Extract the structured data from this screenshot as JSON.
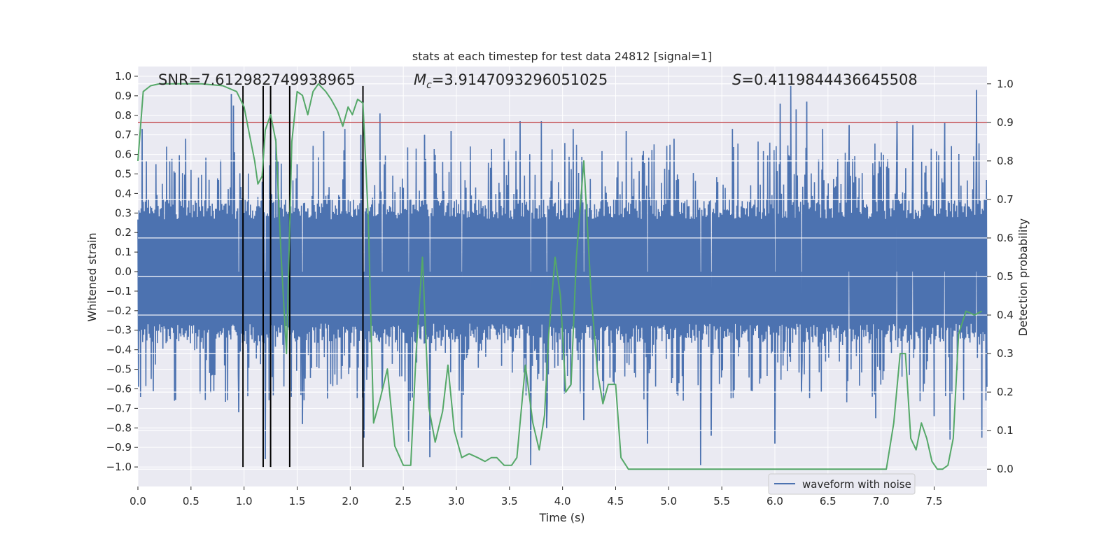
{
  "chart_data": {
    "type": "line",
    "title": "stats at each timestep for test data 24812 [signal=1]",
    "xlabel": "Time (s)",
    "ylabel": "Whitened strain",
    "y2label": "Detection probability",
    "xlim": [
      0.0,
      7.998
    ],
    "ylim": [
      -1.1,
      1.05
    ],
    "y2lim": [
      -0.045,
      1.045
    ],
    "x_ticks": [
      0.0,
      0.5,
      1.0,
      1.5,
      2.0,
      2.5,
      3.0,
      3.5,
      4.0,
      4.5,
      5.0,
      5.5,
      6.0,
      6.5,
      7.0,
      7.5
    ],
    "x_tick_labels": [
      "0.0",
      "0.5",
      "1.0",
      "1.5",
      "2.0",
      "2.5",
      "3.0",
      "3.5",
      "4.0",
      "4.5",
      "5.0",
      "5.5",
      "6.0",
      "6.5",
      "7.0",
      "7.5"
    ],
    "y_ticks": [
      1.0,
      0.9,
      0.8,
      0.7,
      0.6,
      0.5,
      0.4,
      0.3,
      0.2,
      0.1,
      0.0,
      -0.1,
      -0.2,
      -0.3,
      -0.4,
      -0.5,
      -0.6,
      -0.7,
      -0.8,
      -0.9,
      -1.0
    ],
    "y_tick_labels": [
      "1.0",
      "0.9",
      "0.8",
      "0.7",
      "0.6",
      "0.5",
      "0.4",
      "0.3",
      "0.2",
      "0.1",
      "0.0",
      "−0.1",
      "−0.2",
      "−0.3",
      "−0.4",
      "−0.5",
      "−0.6",
      "−0.7",
      "−0.8",
      "−0.9",
      "−1.0"
    ],
    "y2_ticks": [
      1.0,
      0.9,
      0.8,
      0.7,
      0.6,
      0.5,
      0.4,
      0.3,
      0.2,
      0.1,
      0.0
    ],
    "y2_tick_labels": [
      "1.0",
      "0.9",
      "0.8",
      "0.7",
      "0.6",
      "0.5",
      "0.4",
      "0.3",
      "0.2",
      "0.1",
      "0.0"
    ],
    "grid": true,
    "legend": {
      "placement": "lower-right",
      "entries": [
        "waveform with noise"
      ]
    },
    "annotations": {
      "snr": "SNR=7.612982749938965",
      "mc_symbol": "M",
      "mc_sub": "c",
      "mc_value": "=3.9147093296051025",
      "s_symbol": "S",
      "s_value": "=0.4119844436645508"
    },
    "threshold": 0.9,
    "event_markers": [
      0.99,
      1.18,
      1.25,
      1.43,
      2.12
    ],
    "event_marker_ylim": [
      -1.0,
      0.95
    ],
    "waveform": {
      "name": "waveform with noise",
      "sample_count": 1600,
      "envelope": 0.37,
      "peaks": [
        [
          0.04,
          0.73
        ],
        [
          0.45,
          0.68
        ],
        [
          0.88,
          0.91
        ],
        [
          0.9,
          0.85
        ],
        [
          0.95,
          -0.72
        ],
        [
          1.2,
          -0.96
        ],
        [
          1.3,
          0.68
        ],
        [
          1.5,
          0.55
        ],
        [
          1.55,
          -0.78
        ],
        [
          1.75,
          0.72
        ],
        [
          1.95,
          0.73
        ],
        [
          2.1,
          0.7
        ],
        [
          2.13,
          -0.85
        ],
        [
          2.28,
          0.81
        ],
        [
          2.3,
          -0.6
        ],
        [
          2.55,
          -0.87
        ],
        [
          2.7,
          0.7
        ],
        [
          2.75,
          -0.95
        ],
        [
          2.95,
          0.72
        ],
        [
          3.05,
          -0.85
        ],
        [
          3.45,
          0.68
        ],
        [
          3.6,
          0.77
        ],
        [
          3.7,
          -0.99
        ],
        [
          3.8,
          0.77
        ],
        [
          3.85,
          -0.8
        ],
        [
          4.1,
          0.73
        ],
        [
          4.2,
          -0.76
        ],
        [
          4.6,
          0.72
        ],
        [
          4.8,
          -0.88
        ],
        [
          5.05,
          0.68
        ],
        [
          5.3,
          -0.99
        ],
        [
          5.4,
          -0.84
        ],
        [
          5.6,
          0.73
        ],
        [
          6.0,
          -0.88
        ],
        [
          6.05,
          0.86
        ],
        [
          6.15,
          0.95
        ],
        [
          6.2,
          0.83
        ],
        [
          6.25,
          -0.62
        ],
        [
          6.3,
          0.87
        ],
        [
          6.45,
          0.73
        ],
        [
          6.7,
          0.75
        ],
        [
          6.95,
          -0.75
        ],
        [
          7.15,
          0.77
        ],
        [
          7.3,
          0.75
        ],
        [
          7.5,
          -0.74
        ],
        [
          7.6,
          0.76
        ],
        [
          7.65,
          -0.86
        ],
        [
          7.9,
          0.93
        ],
        [
          7.95,
          -0.85
        ]
      ]
    },
    "series": [
      {
        "name": "",
        "axis": "right",
        "color": "#55a868",
        "x": [
          0.0,
          0.05,
          0.12,
          0.2,
          0.4,
          0.6,
          0.8,
          0.93,
          1.0,
          1.05,
          1.1,
          1.13,
          1.17,
          1.2,
          1.25,
          1.3,
          1.35,
          1.4,
          1.45,
          1.5,
          1.55,
          1.6,
          1.65,
          1.7,
          1.77,
          1.82,
          1.88,
          1.93,
          1.98,
          2.02,
          2.07,
          2.12,
          2.17,
          2.22,
          2.28,
          2.35,
          2.42,
          2.5,
          2.57,
          2.62,
          2.68,
          2.74,
          2.8,
          2.87,
          2.92,
          2.98,
          3.05,
          3.12,
          3.2,
          3.27,
          3.33,
          3.38,
          3.45,
          3.52,
          3.57,
          3.65,
          3.72,
          3.78,
          3.83,
          3.87,
          3.93,
          3.98,
          4.03,
          4.08,
          4.13,
          4.2,
          4.27,
          4.33,
          4.38,
          4.43,
          4.5,
          4.55,
          4.62,
          4.68,
          4.75,
          4.9,
          5.1,
          5.3,
          5.45,
          5.6,
          6.0,
          6.5,
          6.7,
          6.9,
          7.05,
          7.12,
          7.18,
          7.23,
          7.28,
          7.33,
          7.38,
          7.43,
          7.48,
          7.53,
          7.58,
          7.63,
          7.68,
          7.73,
          7.8,
          7.88,
          7.95
        ],
        "y": [
          0.8,
          0.98,
          0.995,
          1.0,
          1.0,
          1.0,
          0.995,
          0.98,
          0.94,
          0.87,
          0.8,
          0.74,
          0.76,
          0.88,
          0.92,
          0.85,
          0.55,
          0.3,
          0.85,
          0.98,
          0.97,
          0.92,
          0.98,
          1.0,
          0.98,
          0.96,
          0.93,
          0.89,
          0.94,
          0.92,
          0.96,
          0.95,
          0.65,
          0.12,
          0.18,
          0.26,
          0.06,
          0.01,
          0.01,
          0.3,
          0.55,
          0.16,
          0.07,
          0.15,
          0.27,
          0.1,
          0.03,
          0.04,
          0.03,
          0.02,
          0.03,
          0.03,
          0.01,
          0.01,
          0.03,
          0.27,
          0.12,
          0.05,
          0.14,
          0.35,
          0.55,
          0.45,
          0.2,
          0.22,
          0.55,
          0.8,
          0.45,
          0.25,
          0.17,
          0.22,
          0.22,
          0.03,
          0.0,
          0.0,
          0.0,
          0.0,
          0.0,
          0.0,
          0.0,
          0.0,
          0.0,
          0.0,
          0.0,
          0.0,
          0.0,
          0.12,
          0.3,
          0.3,
          0.08,
          0.05,
          0.12,
          0.08,
          0.02,
          0.0,
          0.0,
          0.01,
          0.08,
          0.35,
          0.41,
          0.4,
          0.41
        ]
      }
    ]
  }
}
